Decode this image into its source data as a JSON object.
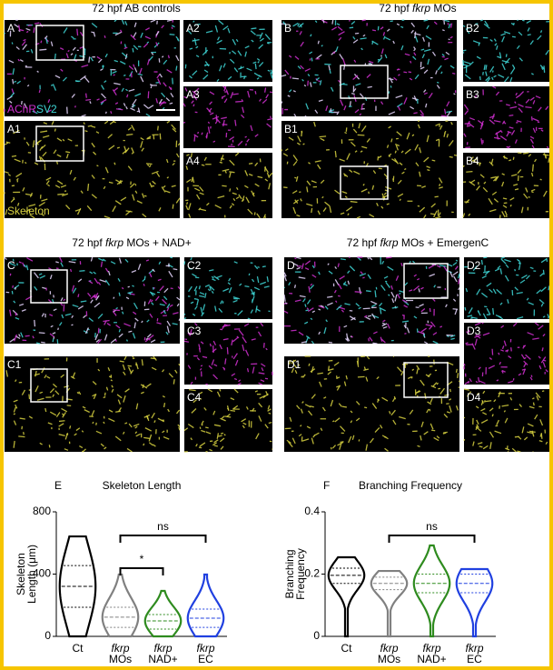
{
  "figure": {
    "channel_labels": {
      "achr": "AChR",
      "sv2": "SV2",
      "skeleton": "Skeleton"
    },
    "groups": [
      {
        "title": [
          "72 hpf AB controls"
        ],
        "labels": [
          "A",
          "A1",
          "A2",
          "A3",
          "A4"
        ]
      },
      {
        "title": [
          "72 hpf ",
          "fkrp",
          " MOs"
        ],
        "labels": [
          "B",
          "B1",
          "B2",
          "B3",
          "B4"
        ]
      },
      {
        "title": [
          "72 hpf ",
          "fkrp",
          " MOs + NAD+"
        ],
        "labels": [
          "C",
          "C1",
          "C2",
          "C3",
          "C4"
        ]
      },
      {
        "title": [
          "72 hpf ",
          "fkrp",
          " MOs + EmergenC"
        ],
        "labels": [
          "D",
          "D1",
          "D2",
          "D3",
          "D4"
        ]
      }
    ]
  },
  "chart_data": [
    {
      "type": "violin",
      "panel_label": "E",
      "title": "Skeleton Length",
      "ylabel": [
        "Skeleton",
        "Length (μm)"
      ],
      "categories": [
        [
          "Ct"
        ],
        [
          "fkrp",
          "MOs"
        ],
        [
          "fkrp",
          "NAD+"
        ],
        [
          "fkrp",
          "EC"
        ]
      ],
      "groups": [
        {
          "color": "#000000",
          "min": 0,
          "q1": 187,
          "median": 321,
          "q3": 455,
          "max": 642
        },
        {
          "color": "#808080",
          "min": 0,
          "q1": 58,
          "median": 123,
          "q3": 187,
          "max": 397
        },
        {
          "color": "#2e8b1e",
          "min": 0,
          "q1": 47,
          "median": 99,
          "q3": 140,
          "max": 292
        },
        {
          "color": "#2040e0",
          "min": 0,
          "q1": 58,
          "median": 117,
          "q3": 175,
          "max": 397
        }
      ],
      "ylim": [
        0,
        800
      ],
      "yticks": [
        0,
        400,
        800
      ],
      "annotations": [
        "ns",
        "*"
      ]
    },
    {
      "type": "violin",
      "panel_label": "F",
      "title": "Branching Frequency",
      "ylabel": [
        "Branching",
        "Frequency"
      ],
      "categories": [
        [
          "Ct"
        ],
        [
          "fkrp",
          "MOs"
        ],
        [
          "fkrp",
          "NAD+"
        ],
        [
          "fkrp",
          "EC"
        ]
      ],
      "groups": [
        {
          "color": "#000000",
          "min": 0,
          "q1": 0.17,
          "median": 0.196,
          "q3": 0.219,
          "max": 0.254
        },
        {
          "color": "#808080",
          "min": 0,
          "q1": 0.15,
          "median": 0.17,
          "q3": 0.19,
          "max": 0.21
        },
        {
          "color": "#2e8b1e",
          "min": 0,
          "q1": 0.14,
          "median": 0.17,
          "q3": 0.2,
          "max": 0.292
        },
        {
          "color": "#2040e0",
          "min": 0,
          "q1": 0.14,
          "median": 0.17,
          "q3": 0.2,
          "max": 0.216
        }
      ],
      "ylim": [
        0,
        0.4
      ],
      "yticks": [
        0,
        0.2,
        0.4
      ],
      "annotations": [
        "ns"
      ]
    }
  ]
}
